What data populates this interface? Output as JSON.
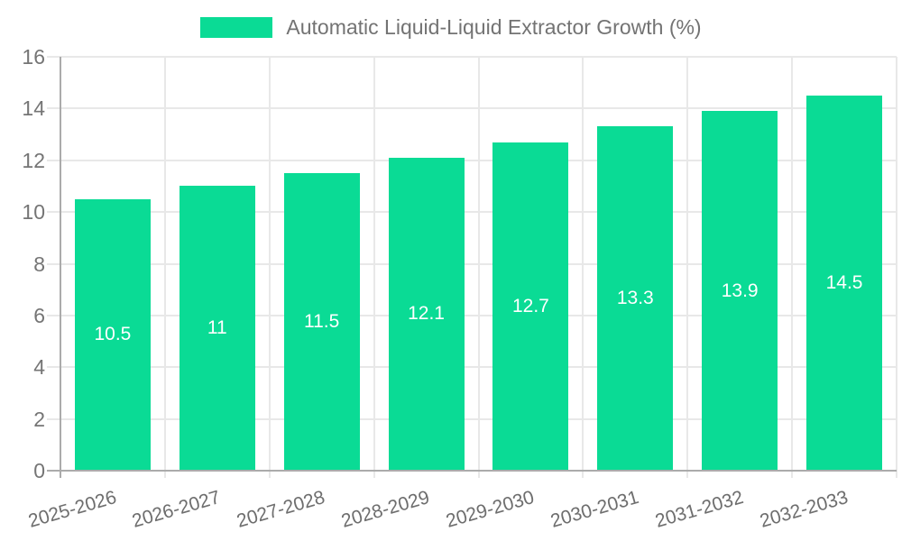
{
  "legend": {
    "label": "Automatic Liquid-Liquid Extractor Growth (%)"
  },
  "chart_data": {
    "type": "bar",
    "title": "Automatic Liquid-Liquid Extractor Growth (%)",
    "categories": [
      "2025-2026",
      "2026-2027",
      "2027-2028",
      "2028-2029",
      "2029-2030",
      "2030-2031",
      "2031-2032",
      "2032-2033"
    ],
    "values": [
      10.5,
      11,
      11.5,
      12.1,
      12.7,
      13.3,
      13.9,
      14.5
    ],
    "value_labels": [
      "10.5",
      "11",
      "11.5",
      "12.1",
      "12.7",
      "13.3",
      "13.9",
      "14.5"
    ],
    "xlabel": "",
    "ylabel": "",
    "ylim": [
      0,
      16
    ],
    "yticks": [
      0,
      2,
      4,
      6,
      8,
      10,
      12,
      14,
      16
    ],
    "ytick_labels": [
      "0",
      "2",
      "4",
      "6",
      "8",
      "10",
      "12",
      "14",
      "16"
    ],
    "grid": "on",
    "legend_position": "top",
    "colors": {
      "bar": "#0adb95",
      "bar_value_text": "#ffffff",
      "gridline": "#e8e8e8",
      "axis_line": "#ababab",
      "ytick_text": "#757575",
      "xtick_text": "#6e6e6e",
      "legend_text": "#737373"
    }
  }
}
